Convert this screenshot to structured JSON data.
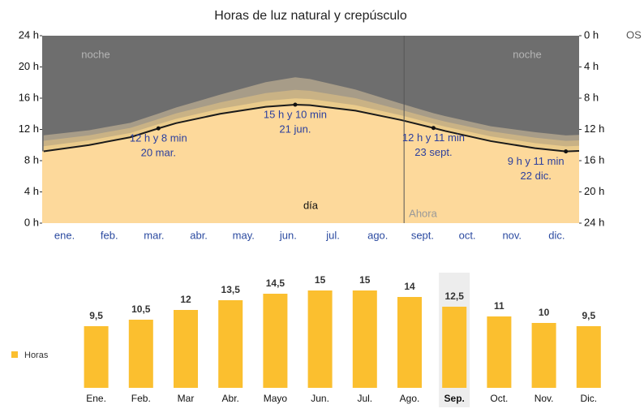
{
  "overflow_text": "OS",
  "chart_data": [
    {
      "type": "area",
      "title": "Horas de luz natural y crepúsculo",
      "categories": [
        "ene.",
        "feb.",
        "mar.",
        "abr.",
        "may.",
        "jun.",
        "jul.",
        "ago.",
        "sept.",
        "oct.",
        "nov.",
        "dic."
      ],
      "x": [
        1,
        32,
        60,
        79,
        91,
        121,
        152,
        172,
        182,
        213,
        244,
        266,
        274,
        305,
        335,
        356,
        365
      ],
      "xlim": [
        0,
        365
      ],
      "series": [
        {
          "color": "#fdd99b",
          "values": [
            9.2,
            10.0,
            11.0,
            12.13,
            12.8,
            14.0,
            14.9,
            15.17,
            15.1,
            14.4,
            13.2,
            12.18,
            11.8,
            10.5,
            9.6,
            9.18,
            9.25
          ]
        },
        {
          "color": "#eacb8b",
          "values": [
            0.65,
            0.6,
            0.55,
            0.55,
            0.55,
            0.65,
            0.75,
            0.8,
            0.8,
            0.7,
            0.6,
            0.55,
            0.55,
            0.6,
            0.65,
            0.65,
            0.65
          ]
        },
        {
          "color": "#c9b285",
          "values": [
            0.7,
            0.65,
            0.65,
            0.65,
            0.7,
            0.8,
            1.0,
            1.1,
            1.05,
            0.9,
            0.7,
            0.65,
            0.65,
            0.65,
            0.7,
            0.7,
            0.7
          ]
        },
        {
          "color": "#a79c88",
          "values": [
            0.7,
            0.65,
            0.65,
            0.7,
            0.75,
            1.0,
            1.4,
            1.6,
            1.5,
            1.1,
            0.8,
            0.7,
            0.7,
            0.65,
            0.7,
            0.7,
            0.7
          ]
        }
      ],
      "line_color": "#1a1a1a",
      "night_color": "#6e6e6e",
      "ylim": [
        0,
        24
      ],
      "yticks": [
        {
          "value": 0,
          "label": "0 h"
        },
        {
          "value": 4,
          "label": "4 h"
        },
        {
          "value": 8,
          "label": "8 h"
        },
        {
          "value": 12,
          "label": "12 h"
        },
        {
          "value": 16,
          "label": "16 h"
        },
        {
          "value": 20,
          "label": "20 h"
        },
        {
          "value": 24,
          "label": "24 h"
        }
      ],
      "y2lim": [
        24,
        0
      ],
      "y2ticks": [
        {
          "value": 0,
          "label": "0 h"
        },
        {
          "value": 4,
          "label": "4 h"
        },
        {
          "value": 8,
          "label": "8 h"
        },
        {
          "value": 12,
          "label": "12 h"
        },
        {
          "value": 16,
          "label": "16 h"
        },
        {
          "value": 20,
          "label": "20 h"
        },
        {
          "value": 24,
          "label": "24 h"
        }
      ],
      "region_labels": {
        "night": "noche",
        "day": "día",
        "now": "Ahora"
      },
      "now_x": 246,
      "annotations": [
        {
          "x": 79,
          "y": 12.13,
          "label": "12 h y 8 min",
          "date": "20 mar."
        },
        {
          "x": 172,
          "y": 15.17,
          "label": "15 h y 10 min",
          "date": "21 jun."
        },
        {
          "x": 266,
          "y": 12.18,
          "label": "12 h y 11 min",
          "date": "23 sept."
        },
        {
          "x": 356,
          "y": 9.18,
          "label": "9 h y 11 min",
          "date": "22 dic."
        }
      ]
    },
    {
      "type": "bar",
      "categories": [
        "Ene.",
        "Feb.",
        "Mar",
        "Abr.",
        "Mayo",
        "Jun.",
        "Jul.",
        "Ago.",
        "Sep.",
        "Oct.",
        "Nov.",
        "Dic."
      ],
      "series": [
        {
          "name": "Horas",
          "color": "#fbbf2f",
          "values": [
            9.5,
            10.5,
            12,
            13.5,
            14.5,
            15,
            15,
            14,
            12.5,
            11,
            10,
            9.5
          ],
          "value_labels": [
            "9,5",
            "10,5",
            "12",
            "13,5",
            "14,5",
            "15",
            "15",
            "14",
            "12,5",
            "11",
            "10",
            "9,5"
          ]
        }
      ],
      "ylim": [
        0,
        15
      ],
      "highlight": 8
    }
  ]
}
